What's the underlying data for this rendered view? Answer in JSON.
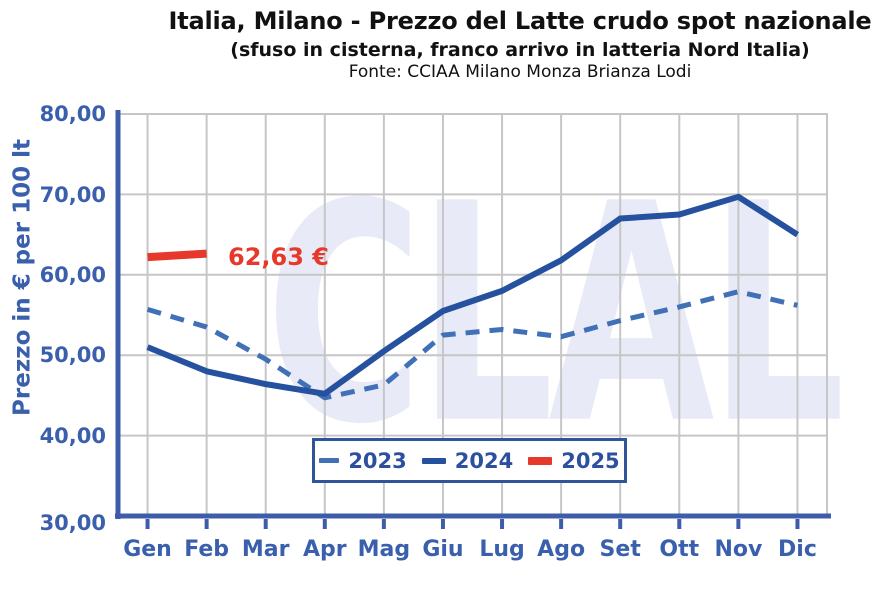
{
  "header": {
    "title": "Italia, Milano - Prezzo del Latte crudo spot nazionale",
    "subtitle": "(sfuso in cisterna, franco arrivo in latteria Nord Italia)",
    "source": "Fonte: CCIAA Milano Monza Brianza Lodi"
  },
  "watermark": {
    "text": "CLAL"
  },
  "annotation": {
    "label": "62,63 €",
    "series": "2025",
    "month": "Feb",
    "value": 62.63
  },
  "y_axis": {
    "title": "Prezzo in € per 100 lt",
    "tick_labels": [
      "80,00",
      "70,00",
      "60,00",
      "50,00",
      "40,00",
      "30,00"
    ],
    "tick_values": [
      80,
      70,
      60,
      50,
      40,
      30
    ]
  },
  "chart_data": {
    "type": "line",
    "title": "Italia, Milano - Prezzo del Latte crudo spot nazionale",
    "xlabel": "",
    "ylabel": "Prezzo in € per 100 lt",
    "ylim": [
      30,
      80
    ],
    "grid": true,
    "legend_position": "bottom-center-inside",
    "categories": [
      "Gen",
      "Feb",
      "Mar",
      "Apr",
      "Mag",
      "Giu",
      "Lug",
      "Ago",
      "Set",
      "Ott",
      "Nov",
      "Dic"
    ],
    "series": [
      {
        "name": "2023",
        "style": "dashed",
        "values": [
          55.7,
          53.5,
          49.5,
          44.7,
          46.3,
          52.5,
          53.2,
          52.3,
          54.3,
          56.0,
          57.9,
          56.2
        ]
      },
      {
        "name": "2024",
        "style": "solid",
        "values": [
          51.0,
          48.0,
          46.4,
          45.2,
          50.5,
          55.5,
          58.0,
          61.8,
          67.0,
          67.5,
          69.7,
          65.0
        ]
      },
      {
        "name": "2025",
        "style": "solid",
        "values": [
          62.2,
          62.63
        ]
      }
    ]
  },
  "colors": {
    "series_2023": "#4070B5",
    "series_2024": "#26519F",
    "series_2025": "#E6392B",
    "axis": "#3E5CA8",
    "labels": "#3A5FAC",
    "legend_text": "#2C4FA0",
    "legend_border": "#2E5597",
    "grid": "#C6C6C6",
    "watermark": "#E8EBF7",
    "annotation": "#E6392B",
    "title": "#111111"
  }
}
